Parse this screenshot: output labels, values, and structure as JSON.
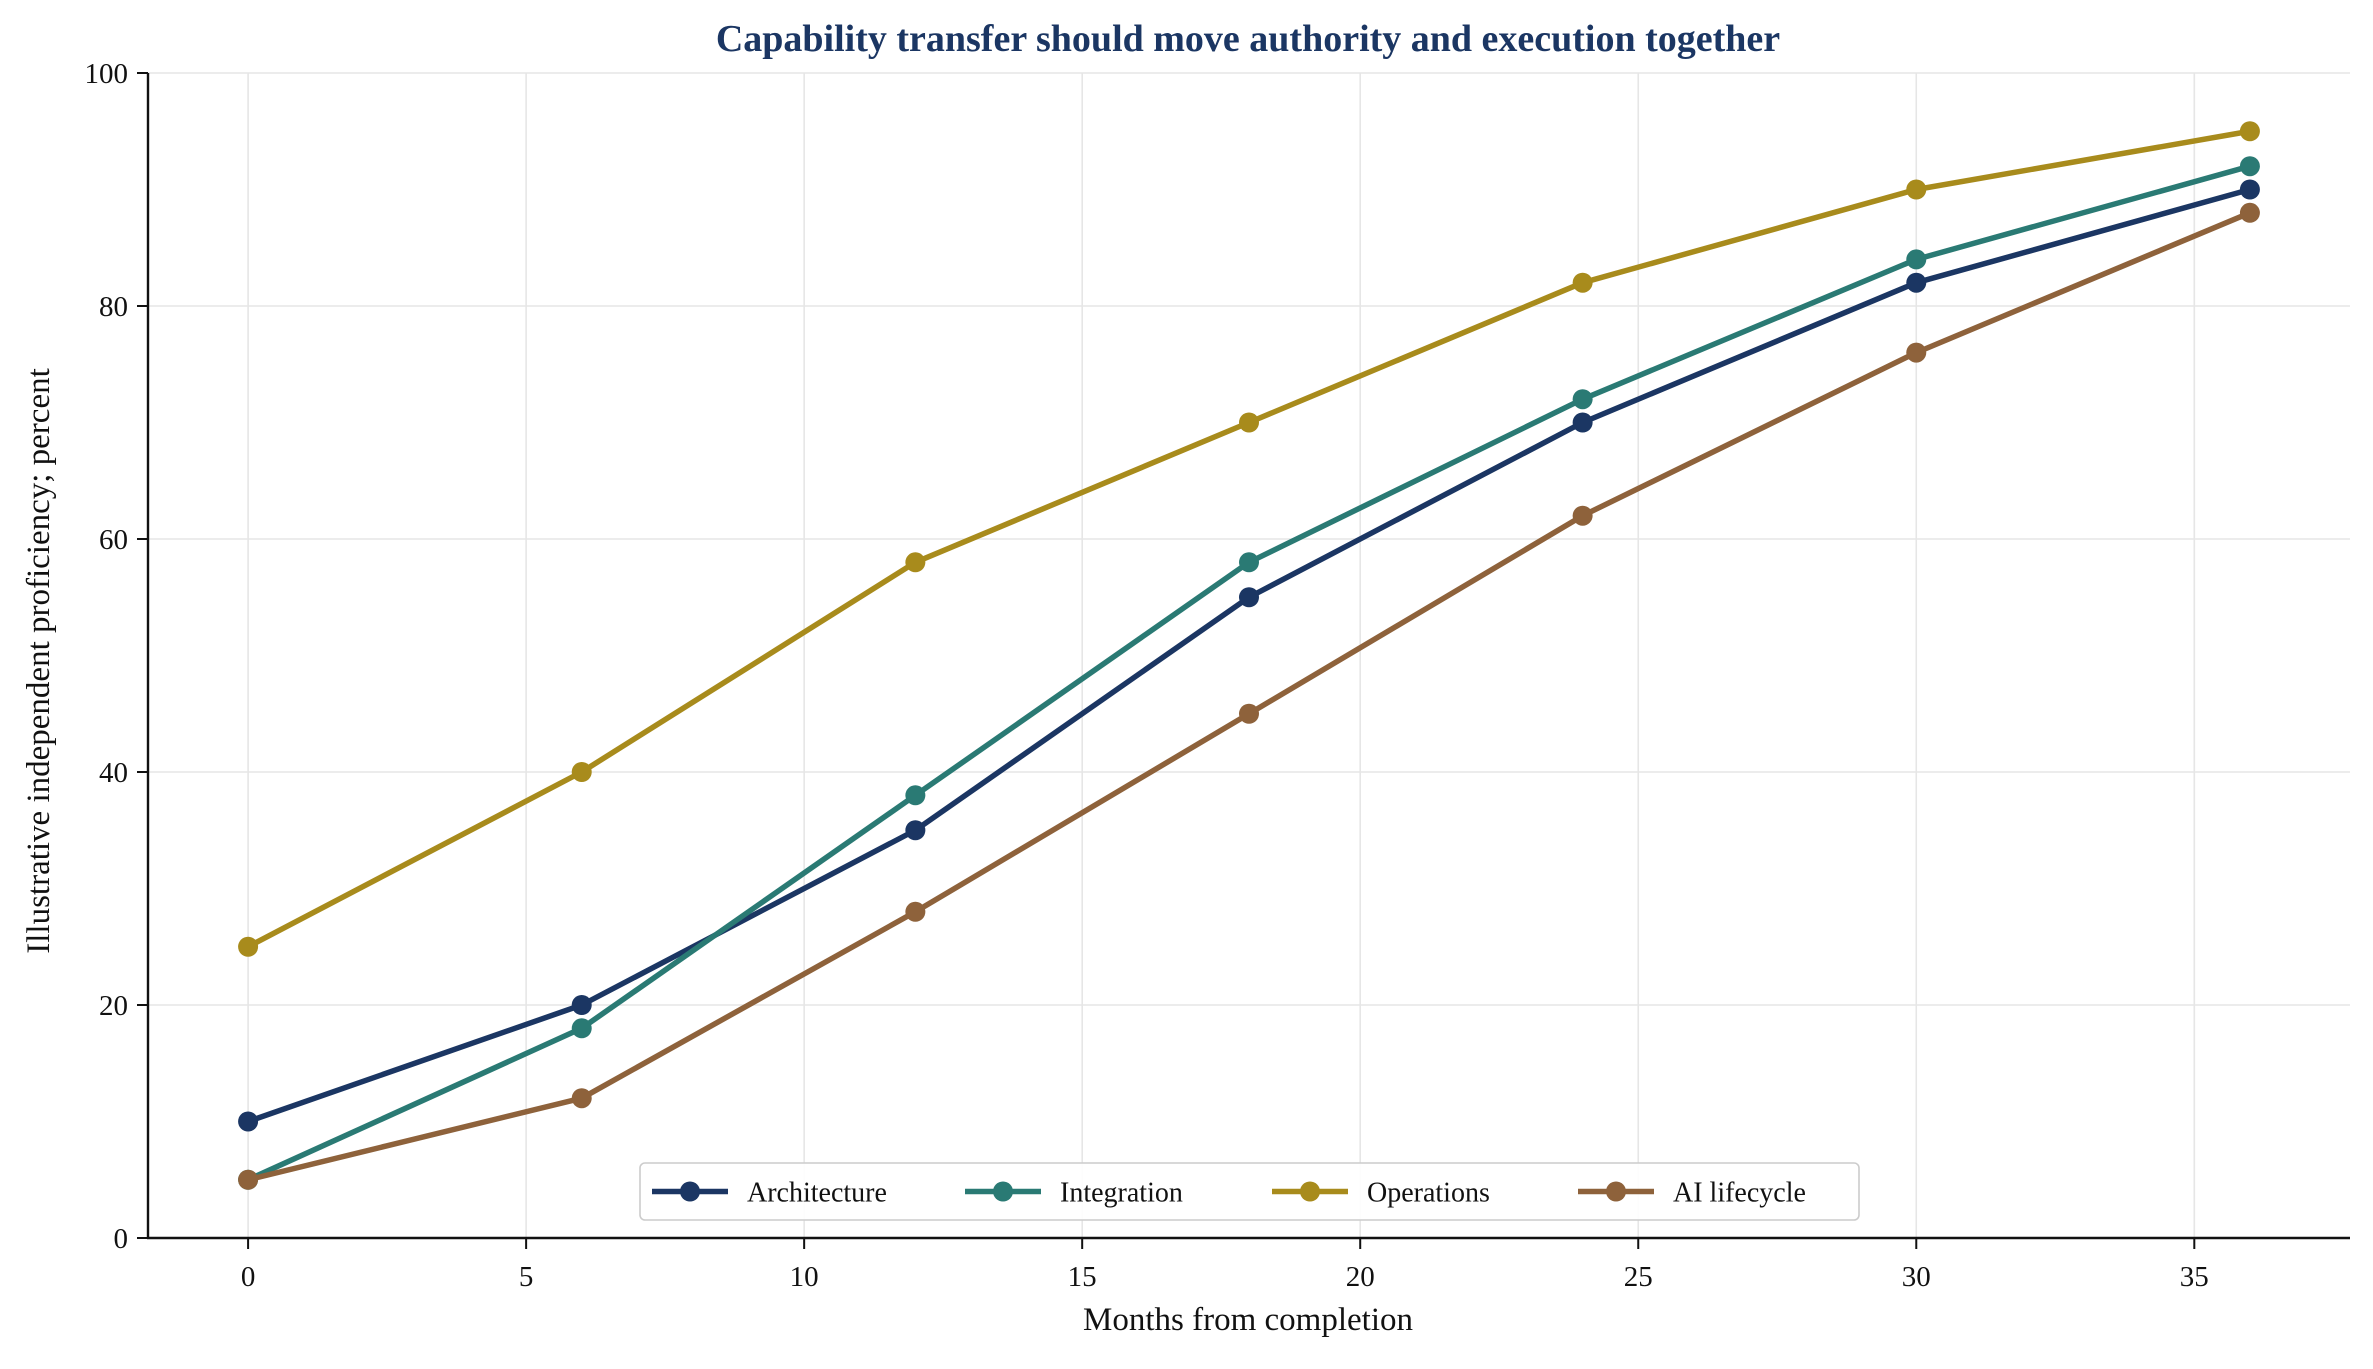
{
  "chart_data": {
    "type": "line",
    "title": "Capability transfer should move authority and execution together",
    "xlabel": "Months from completion",
    "ylabel": "Illustrative independent proficiency; percent",
    "x": [
      0,
      6,
      12,
      18,
      24,
      30,
      36
    ],
    "xlim": [
      -1.8,
      37.8
    ],
    "ylim": [
      0,
      100
    ],
    "xticks": [
      0,
      5,
      10,
      15,
      20,
      25,
      30,
      35
    ],
    "yticks": [
      0,
      20,
      40,
      60,
      80,
      100
    ],
    "grid": true,
    "legend_position": "bottom-center",
    "series": [
      {
        "name": "Architecture",
        "color": "#1b3663",
        "values": [
          10,
          20,
          35,
          55,
          70,
          82,
          90
        ]
      },
      {
        "name": "Integration",
        "color": "#2a7a74",
        "values": [
          5,
          18,
          38,
          58,
          72,
          84,
          92
        ]
      },
      {
        "name": "Operations",
        "color": "#a88b1c",
        "values": [
          25,
          40,
          58,
          70,
          82,
          90,
          95
        ]
      },
      {
        "name": "AI lifecycle",
        "color": "#8e623b",
        "values": [
          5,
          12,
          28,
          45,
          62,
          76,
          88
        ]
      }
    ],
    "title_color": "#1b3663"
  }
}
